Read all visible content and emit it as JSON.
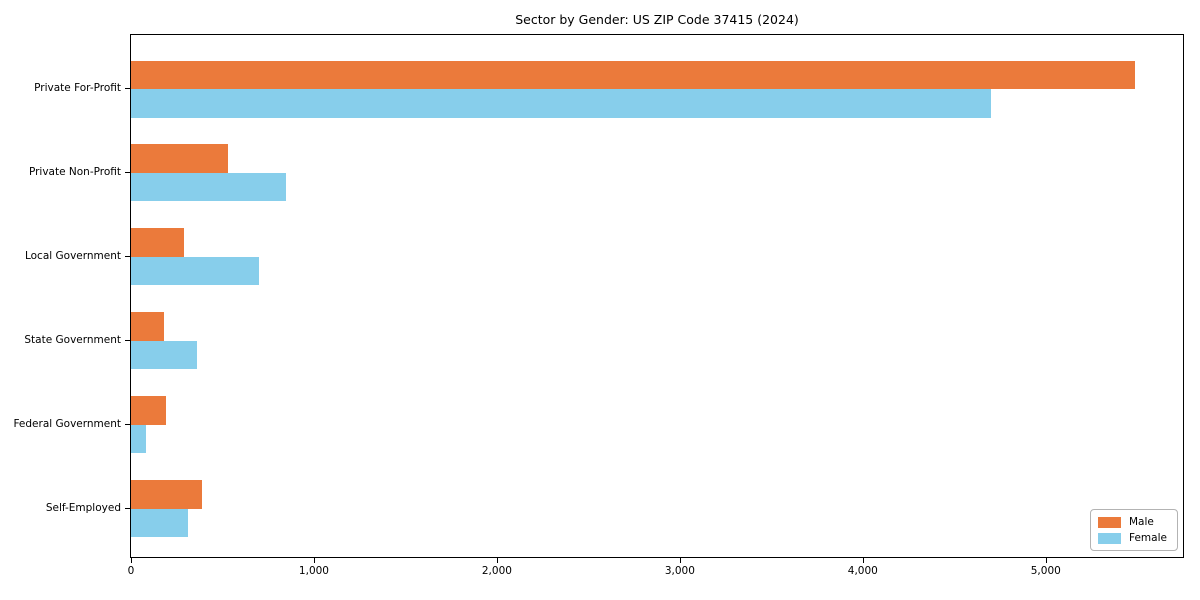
{
  "chart_data": {
    "type": "bar",
    "orientation": "horizontal",
    "title": "Sector by Gender: US ZIP Code 37415 (2024)",
    "xlabel": "",
    "ylabel": "",
    "grid": false,
    "xlim": [
      0,
      5750
    ],
    "categories": [
      "Private For-Profit",
      "Private Non-Profit",
      "Local Government",
      "State Government",
      "Federal Government",
      "Self-Employed"
    ],
    "series": [
      {
        "name": "Male",
        "color": "#EB7A3B",
        "values": [
          5490,
          530,
          290,
          180,
          190,
          390
        ]
      },
      {
        "name": "Female",
        "color": "#87CEEB",
        "values": [
          4700,
          845,
          700,
          360,
          80,
          310
        ]
      }
    ],
    "xticks": {
      "values": [
        0,
        1000,
        2000,
        3000,
        4000,
        5000
      ],
      "labels": [
        "0",
        "1,000",
        "2,000",
        "3,000",
        "4,000",
        "5,000"
      ]
    },
    "legend": {
      "position": "lower right",
      "entries": [
        "Male",
        "Female"
      ]
    }
  }
}
